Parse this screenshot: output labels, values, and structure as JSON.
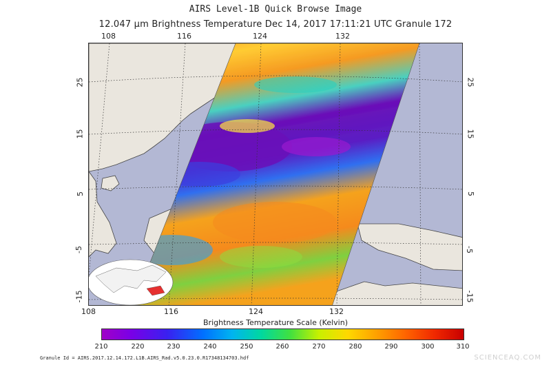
{
  "title": "AIRS Level-1B Quick Browse Image",
  "subtitle": "12.047 μm Brightness Temperature   Dec 14, 2017 17:11:21 UTC   Granule 172",
  "map": {
    "lon_labels": [
      "108",
      "116",
      "124",
      "132"
    ],
    "lat_labels_left": [
      "25",
      "15",
      "5",
      "-5",
      "-15"
    ],
    "lat_labels_right": [
      "25",
      "15",
      "5",
      "-5",
      "-15"
    ],
    "colors": {
      "ocean": "#b3b8d4",
      "land": "#eae6de",
      "swath_cold": "#6a0fb8",
      "swath_warm": "#f58a1e"
    }
  },
  "scale": {
    "title": "Brightness Temperature Scale (Kelvin)",
    "labels": [
      "210",
      "220",
      "230",
      "240",
      "250",
      "260",
      "270",
      "280",
      "290",
      "300",
      "310"
    ],
    "min": 210,
    "max": 310
  },
  "footer": {
    "granule_id": "Granule Id = AIRS.2017.12.14.172.L1B.AIRS_Rad.v5.0.23.0.R17348134703.hdf",
    "watermark": "SCIENCEAQ.COM"
  }
}
